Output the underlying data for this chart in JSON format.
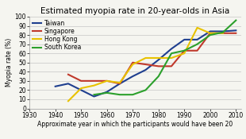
{
  "title": "Estimated myopia rate in 20-year-olds in Asia",
  "xlabel": "Approximate year in which the participants would have been 20",
  "ylabel": "Myopia rate (%)",
  "xlim": [
    1930,
    2012
  ],
  "ylim": [
    0,
    100
  ],
  "xticks": [
    1930,
    1940,
    1950,
    1960,
    1970,
    1980,
    1990,
    2000,
    2010
  ],
  "yticks": [
    0,
    10,
    20,
    30,
    40,
    50,
    60,
    70,
    80,
    90,
    100
  ],
  "series": [
    {
      "label": "Taiwan",
      "color": "#1f3f8f",
      "linewidth": 1.5,
      "x": [
        1940,
        1945,
        1950,
        1955,
        1960,
        1965,
        1970,
        1975,
        1980,
        1985,
        1990,
        1995,
        2000,
        2005,
        2010
      ],
      "y": [
        24,
        27,
        20,
        13,
        18,
        27,
        35,
        42,
        53,
        65,
        75,
        75,
        84,
        84,
        85
      ]
    },
    {
      "label": "Singapore",
      "color": "#c0392b",
      "linewidth": 1.5,
      "x": [
        1945,
        1950,
        1955,
        1960,
        1965,
        1970,
        1975,
        1980,
        1985,
        1990,
        1995,
        2000,
        2005,
        2010
      ],
      "y": [
        37,
        30,
        30,
        30,
        27,
        50,
        48,
        46,
        46,
        63,
        63,
        82,
        82,
        82
      ]
    },
    {
      "label": "Hong Kong",
      "color": "#e8c200",
      "linewidth": 1.5,
      "x": [
        1945,
        1950,
        1955,
        1960,
        1965,
        1970,
        1975,
        1980,
        1985,
        1990,
        1995,
        2000,
        2005
      ],
      "y": [
        8,
        22,
        25,
        30,
        28,
        48,
        55,
        55,
        55,
        60,
        88,
        82,
        82
      ]
    },
    {
      "label": "South Korea",
      "color": "#2ca02c",
      "linewidth": 1.5,
      "x": [
        1955,
        1960,
        1965,
        1970,
        1975,
        1980,
        1985,
        1990,
        1995,
        2000,
        2005,
        2010
      ],
      "y": [
        15,
        17,
        15,
        15,
        20,
        35,
        60,
        63,
        70,
        80,
        83,
        96
      ]
    }
  ],
  "background_color": "#f5f5f0",
  "plot_bg_color": "#f5f5f0",
  "grid_color": "#bbbbbb",
  "title_fontsize": 7.5,
  "label_fontsize": 5.5,
  "tick_fontsize": 5.5,
  "legend_fontsize": 5.5
}
